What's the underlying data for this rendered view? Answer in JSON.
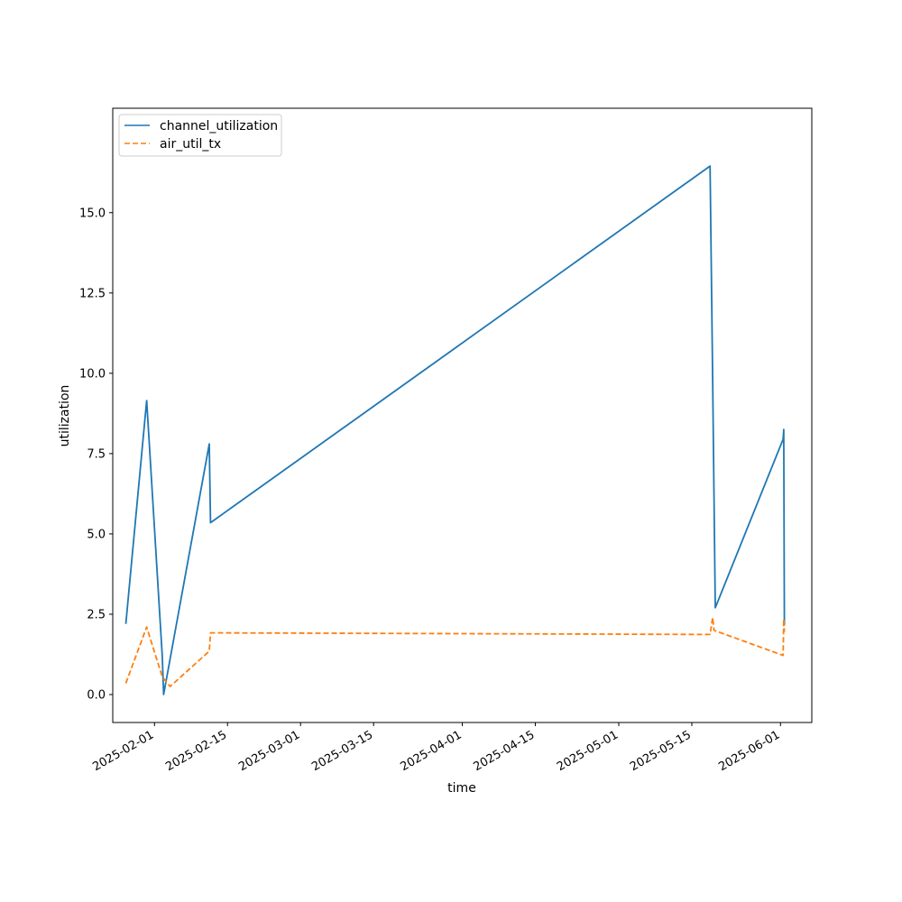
{
  "chart_data": {
    "type": "line",
    "title": "",
    "xlabel": "time",
    "ylabel": "utilization",
    "x_tick_labels": [
      "2025-02-01",
      "2025-02-15",
      "2025-03-01",
      "2025-03-15",
      "2025-04-01",
      "2025-04-15",
      "2025-05-01",
      "2025-05-15",
      "2025-06-01"
    ],
    "y_tick_labels": [
      "0.0",
      "2.5",
      "5.0",
      "7.5",
      "10.0",
      "12.5",
      "15.0"
    ],
    "xlim": [
      "2025-01-24",
      "2025-06-07"
    ],
    "ylim": [
      -0.87,
      18.25
    ],
    "grid": false,
    "legend_position": "upper left",
    "series": [
      {
        "name": "channel_utilization",
        "color": "#1f77b4",
        "style": "solid",
        "points": [
          {
            "x": "2025-01-26T12:00",
            "y": 2.2
          },
          {
            "x": "2025-01-30T12:00",
            "y": 9.15
          },
          {
            "x": "2025-02-02T12:00",
            "y": 1.2
          },
          {
            "x": "2025-02-02T18:00",
            "y": 0.0
          },
          {
            "x": "2025-02-11T12:00",
            "y": 7.8
          },
          {
            "x": "2025-02-11T18:00",
            "y": 5.35
          },
          {
            "x": "2025-05-18T12:00",
            "y": 16.45
          },
          {
            "x": "2025-05-19T00:00",
            "y": 9.8
          },
          {
            "x": "2025-05-19T12:00",
            "y": 2.7
          },
          {
            "x": "2025-06-01T12:00",
            "y": 7.95
          },
          {
            "x": "2025-06-01T15:00",
            "y": 8.25
          },
          {
            "x": "2025-06-01T18:00",
            "y": 2.15
          }
        ]
      },
      {
        "name": "air_util_tx",
        "color": "#ff7f0e",
        "style": "dashed",
        "points": [
          {
            "x": "2025-01-26T12:00",
            "y": 0.35
          },
          {
            "x": "2025-01-30T12:00",
            "y": 2.1
          },
          {
            "x": "2025-02-02T12:00",
            "y": 0.55
          },
          {
            "x": "2025-02-04T00:00",
            "y": 0.25
          },
          {
            "x": "2025-02-11T12:00",
            "y": 1.35
          },
          {
            "x": "2025-02-11T18:00",
            "y": 1.92
          },
          {
            "x": "2025-05-18T12:00",
            "y": 1.87
          },
          {
            "x": "2025-05-19T00:00",
            "y": 2.4
          },
          {
            "x": "2025-05-19T06:00",
            "y": 2.0
          },
          {
            "x": "2025-06-01T12:00",
            "y": 1.22
          },
          {
            "x": "2025-06-01T15:00",
            "y": 2.35
          },
          {
            "x": "2025-06-01T18:00",
            "y": 1.95
          }
        ]
      }
    ]
  }
}
